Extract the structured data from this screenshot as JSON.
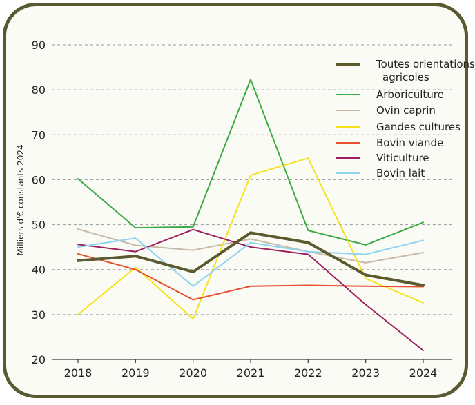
{
  "chart_data": {
    "type": "line",
    "ylabel": "Milliers d'€ constants 2024",
    "xlabel": "",
    "ylim": [
      20,
      90
    ],
    "yticks": [
      20,
      30,
      40,
      50,
      60,
      70,
      80,
      90
    ],
    "x": [
      "2018",
      "2019",
      "2020",
      "2021",
      "2022",
      "2023",
      "2024"
    ],
    "grid": "horizontal-dashed",
    "legend_position": "top-right",
    "series": [
      {
        "name": "Toutes orientations agricoles",
        "color": "#5b5a2e",
        "width": 4,
        "values": [
          42.0,
          43.0,
          39.5,
          48.2,
          46.0,
          38.8,
          36.5
        ]
      },
      {
        "name": "Arboriculture",
        "color": "#3aaa45",
        "width": 2,
        "values": [
          60.2,
          49.3,
          49.5,
          82.3,
          48.7,
          45.5,
          50.5
        ]
      },
      {
        "name": "Ovin caprin",
        "color": "#c8b8a6",
        "width": 2,
        "values": [
          49.0,
          45.4,
          44.3,
          46.8,
          44.0,
          41.5,
          43.8
        ]
      },
      {
        "name": "Gandes cultures",
        "color": "#f6e21a",
        "width": 2,
        "values": [
          30.0,
          40.5,
          29.0,
          61.0,
          64.8,
          38.0,
          32.6
        ]
      },
      {
        "name": "Bovin viande",
        "color": "#e84e2c",
        "width": 2,
        "values": [
          43.5,
          40.0,
          33.3,
          36.3,
          36.5,
          36.3,
          36.2
        ]
      },
      {
        "name": "Viticulture",
        "color": "#9b1f5e",
        "width": 2,
        "values": [
          45.6,
          44.0,
          48.9,
          45.0,
          43.4,
          32.2,
          22.0
        ]
      },
      {
        "name": "Bovin lait",
        "color": "#8ed3f0",
        "width": 2,
        "values": [
          45.0,
          47.0,
          36.3,
          46.0,
          44.0,
          43.4,
          46.5
        ]
      }
    ]
  },
  "legend": {
    "lines": [
      {
        "text": "Toutes orientations",
        "series": 0
      },
      {
        "text": "agricoles",
        "series": -1
      },
      {
        "text": "Arboriculture",
        "series": 1
      },
      {
        "text": "Ovin caprin",
        "series": 2
      },
      {
        "text": "Gandes cultures",
        "series": 3
      },
      {
        "text": "Bovin viande",
        "series": 4
      },
      {
        "text": "Viticulture",
        "series": 5
      },
      {
        "text": "Bovin lait",
        "series": 6
      }
    ]
  }
}
